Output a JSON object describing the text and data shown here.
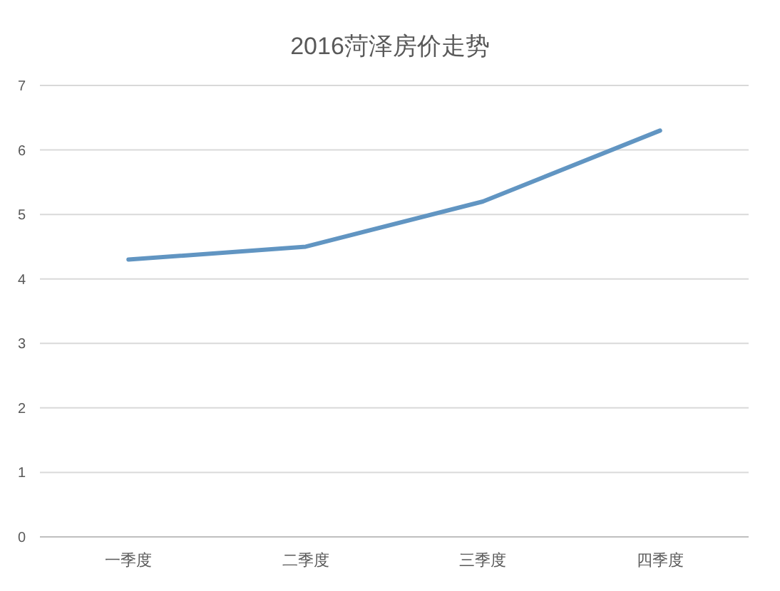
{
  "chart_data": {
    "type": "line",
    "title": "2016菏泽房价走势",
    "categories": [
      "一季度",
      "二季度",
      "三季度",
      "四季度"
    ],
    "series": [
      {
        "color": "#6195c2",
        "values": [
          4.3,
          4.5,
          5.2,
          6.3
        ]
      }
    ],
    "ylim": [
      0,
      7
    ],
    "yticks": [
      0,
      1,
      2,
      3,
      4,
      5,
      6,
      7
    ],
    "grid": "y"
  }
}
